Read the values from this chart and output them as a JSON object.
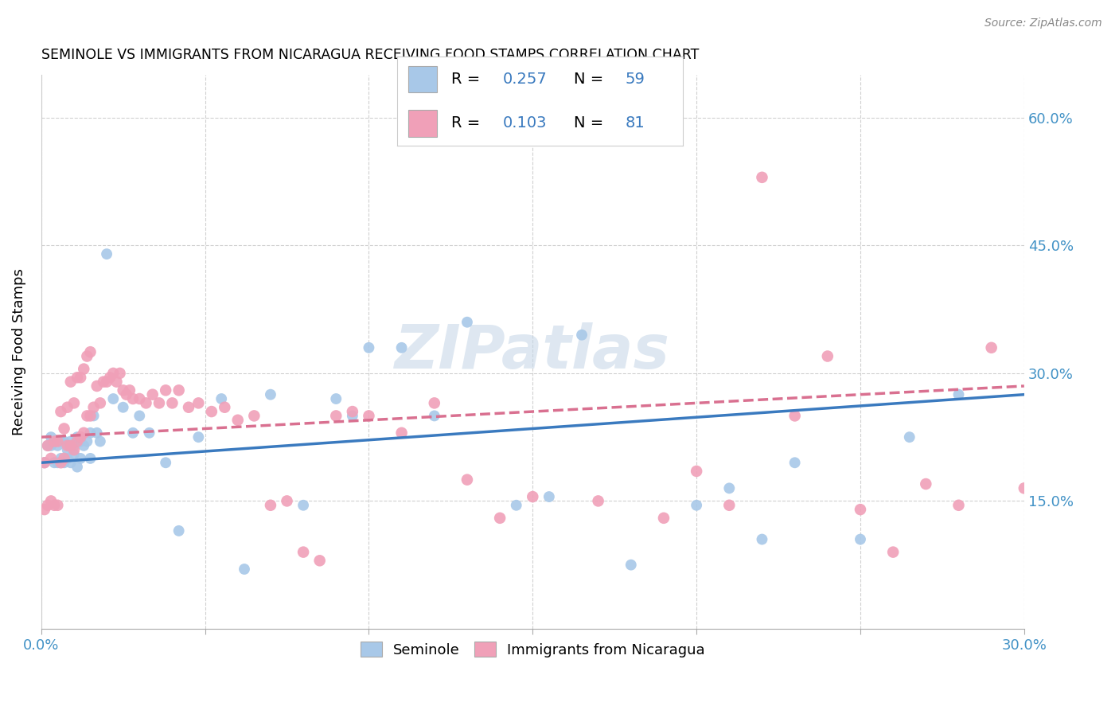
{
  "title": "SEMINOLE VS IMMIGRANTS FROM NICARAGUA RECEIVING FOOD STAMPS CORRELATION CHART",
  "source": "Source: ZipAtlas.com",
  "ylabel": "Receiving Food Stamps",
  "ytick_labels": [
    "15.0%",
    "30.0%",
    "45.0%",
    "60.0%"
  ],
  "ytick_values": [
    0.15,
    0.3,
    0.45,
    0.6
  ],
  "xlim": [
    0.0,
    0.3
  ],
  "ylim": [
    0.0,
    0.65
  ],
  "legend_label1": "Seminole",
  "legend_label2": "Immigrants from Nicaragua",
  "R1": "0.257",
  "N1": "59",
  "R2": "0.103",
  "N2": "81",
  "color_blue": "#a8c8e8",
  "color_pink": "#f0a0b8",
  "line_blue": "#3a7abf",
  "line_pink": "#d97090",
  "watermark": "ZIPatlas",
  "seminole_x": [
    0.001,
    0.002,
    0.003,
    0.003,
    0.004,
    0.004,
    0.005,
    0.005,
    0.006,
    0.006,
    0.007,
    0.007,
    0.008,
    0.008,
    0.009,
    0.009,
    0.01,
    0.01,
    0.011,
    0.011,
    0.012,
    0.012,
    0.013,
    0.014,
    0.015,
    0.015,
    0.016,
    0.017,
    0.018,
    0.02,
    0.022,
    0.025,
    0.028,
    0.03,
    0.033,
    0.038,
    0.042,
    0.048,
    0.055,
    0.062,
    0.07,
    0.08,
    0.09,
    0.095,
    0.1,
    0.11,
    0.12,
    0.13,
    0.145,
    0.155,
    0.165,
    0.18,
    0.2,
    0.21,
    0.22,
    0.23,
    0.25,
    0.265,
    0.28
  ],
  "seminole_y": [
    0.195,
    0.215,
    0.215,
    0.225,
    0.195,
    0.22,
    0.195,
    0.215,
    0.2,
    0.22,
    0.195,
    0.22,
    0.2,
    0.21,
    0.195,
    0.22,
    0.205,
    0.215,
    0.19,
    0.225,
    0.2,
    0.22,
    0.215,
    0.22,
    0.2,
    0.23,
    0.25,
    0.23,
    0.22,
    0.44,
    0.27,
    0.26,
    0.23,
    0.25,
    0.23,
    0.195,
    0.115,
    0.225,
    0.27,
    0.07,
    0.275,
    0.145,
    0.27,
    0.25,
    0.33,
    0.33,
    0.25,
    0.36,
    0.145,
    0.155,
    0.345,
    0.075,
    0.145,
    0.165,
    0.105,
    0.195,
    0.105,
    0.225,
    0.275
  ],
  "nicaragua_x": [
    0.001,
    0.001,
    0.002,
    0.002,
    0.003,
    0.003,
    0.004,
    0.004,
    0.005,
    0.005,
    0.006,
    0.006,
    0.007,
    0.007,
    0.008,
    0.008,
    0.009,
    0.009,
    0.01,
    0.01,
    0.011,
    0.011,
    0.012,
    0.012,
    0.013,
    0.013,
    0.014,
    0.014,
    0.015,
    0.015,
    0.016,
    0.017,
    0.018,
    0.019,
    0.02,
    0.021,
    0.022,
    0.023,
    0.024,
    0.025,
    0.026,
    0.027,
    0.028,
    0.03,
    0.032,
    0.034,
    0.036,
    0.038,
    0.04,
    0.042,
    0.045,
    0.048,
    0.052,
    0.056,
    0.06,
    0.065,
    0.07,
    0.075,
    0.08,
    0.085,
    0.09,
    0.095,
    0.1,
    0.11,
    0.12,
    0.13,
    0.14,
    0.15,
    0.17,
    0.19,
    0.2,
    0.21,
    0.22,
    0.23,
    0.24,
    0.25,
    0.26,
    0.27,
    0.28,
    0.29,
    0.3
  ],
  "nicaragua_y": [
    0.14,
    0.195,
    0.145,
    0.215,
    0.15,
    0.2,
    0.145,
    0.22,
    0.145,
    0.22,
    0.195,
    0.255,
    0.2,
    0.235,
    0.215,
    0.26,
    0.215,
    0.29,
    0.21,
    0.265,
    0.22,
    0.295,
    0.225,
    0.295,
    0.23,
    0.305,
    0.25,
    0.32,
    0.25,
    0.325,
    0.26,
    0.285,
    0.265,
    0.29,
    0.29,
    0.295,
    0.3,
    0.29,
    0.3,
    0.28,
    0.275,
    0.28,
    0.27,
    0.27,
    0.265,
    0.275,
    0.265,
    0.28,
    0.265,
    0.28,
    0.26,
    0.265,
    0.255,
    0.26,
    0.245,
    0.25,
    0.145,
    0.15,
    0.09,
    0.08,
    0.25,
    0.255,
    0.25,
    0.23,
    0.265,
    0.175,
    0.13,
    0.155,
    0.15,
    0.13,
    0.185,
    0.145,
    0.53,
    0.25,
    0.32,
    0.14,
    0.09,
    0.17,
    0.145,
    0.33,
    0.165
  ]
}
